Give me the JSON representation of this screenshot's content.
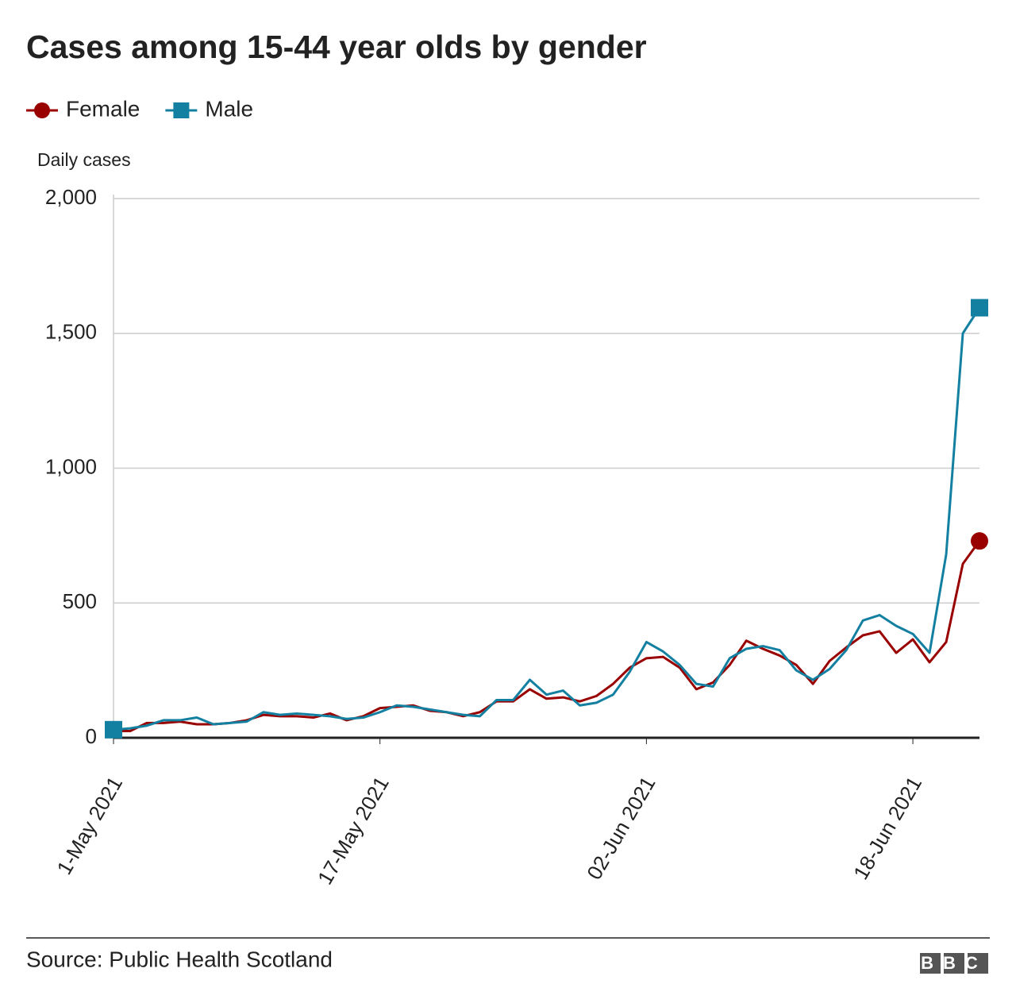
{
  "chart_data": {
    "type": "line",
    "title": "Cases among 15-44 year olds by gender",
    "y_label": "Daily cases",
    "source": "Source: Public Health Scotland",
    "logo": "BBC",
    "x": [
      "2021-05-01",
      "2021-05-02",
      "2021-05-03",
      "2021-05-04",
      "2021-05-05",
      "2021-05-06",
      "2021-05-07",
      "2021-05-08",
      "2021-05-09",
      "2021-05-10",
      "2021-05-11",
      "2021-05-12",
      "2021-05-13",
      "2021-05-14",
      "2021-05-15",
      "2021-05-16",
      "2021-05-17",
      "2021-05-18",
      "2021-05-19",
      "2021-05-20",
      "2021-05-21",
      "2021-05-22",
      "2021-05-23",
      "2021-05-24",
      "2021-05-25",
      "2021-05-26",
      "2021-05-27",
      "2021-05-28",
      "2021-05-29",
      "2021-05-30",
      "2021-05-31",
      "2021-06-01",
      "2021-06-02",
      "2021-06-03",
      "2021-06-04",
      "2021-06-05",
      "2021-06-06",
      "2021-06-07",
      "2021-06-08",
      "2021-06-09",
      "2021-06-10",
      "2021-06-11",
      "2021-06-12",
      "2021-06-13",
      "2021-06-14",
      "2021-06-15",
      "2021-06-16",
      "2021-06-17",
      "2021-06-18",
      "2021-06-19",
      "2021-06-20",
      "2021-06-21",
      "2021-06-22"
    ],
    "series": [
      {
        "name": "Female",
        "color": "#990000",
        "marker": "circle",
        "values": [
          25,
          25,
          55,
          55,
          60,
          50,
          50,
          55,
          65,
          85,
          80,
          80,
          75,
          90,
          65,
          80,
          110,
          115,
          120,
          100,
          95,
          80,
          95,
          135,
          135,
          180,
          145,
          150,
          135,
          155,
          200,
          260,
          295,
          300,
          260,
          180,
          205,
          270,
          360,
          330,
          305,
          270,
          200,
          285,
          335,
          380,
          395,
          315,
          365,
          280,
          355,
          645,
          730
        ]
      },
      {
        "name": "Male",
        "color": "#1380a1",
        "marker": "square",
        "values": [
          30,
          35,
          45,
          65,
          65,
          75,
          50,
          55,
          60,
          95,
          85,
          90,
          85,
          80,
          70,
          75,
          95,
          120,
          115,
          105,
          95,
          85,
          80,
          140,
          140,
          215,
          160,
          175,
          120,
          130,
          160,
          245,
          355,
          320,
          270,
          200,
          190,
          295,
          330,
          340,
          325,
          250,
          215,
          255,
          325,
          435,
          455,
          415,
          385,
          315,
          680,
          1500,
          1595
        ]
      }
    ],
    "xticks": [
      {
        "value": "2021-05-01",
        "label": "1-May 2021"
      },
      {
        "value": "2021-05-17",
        "label": "17-May 2021"
      },
      {
        "value": "2021-06-02",
        "label": "02-Jun 2021"
      },
      {
        "value": "2021-06-18",
        "label": "18-Jun 2021"
      }
    ],
    "ylim": [
      0,
      2000
    ],
    "yticks": [
      0,
      {
        "value": 500,
        "label": "500"
      },
      {
        "value": 1000,
        "label": "1,000"
      },
      {
        "value": 1500,
        "label": "1,500"
      },
      {
        "value": 2000,
        "label": "2,000"
      }
    ],
    "grid": true
  }
}
